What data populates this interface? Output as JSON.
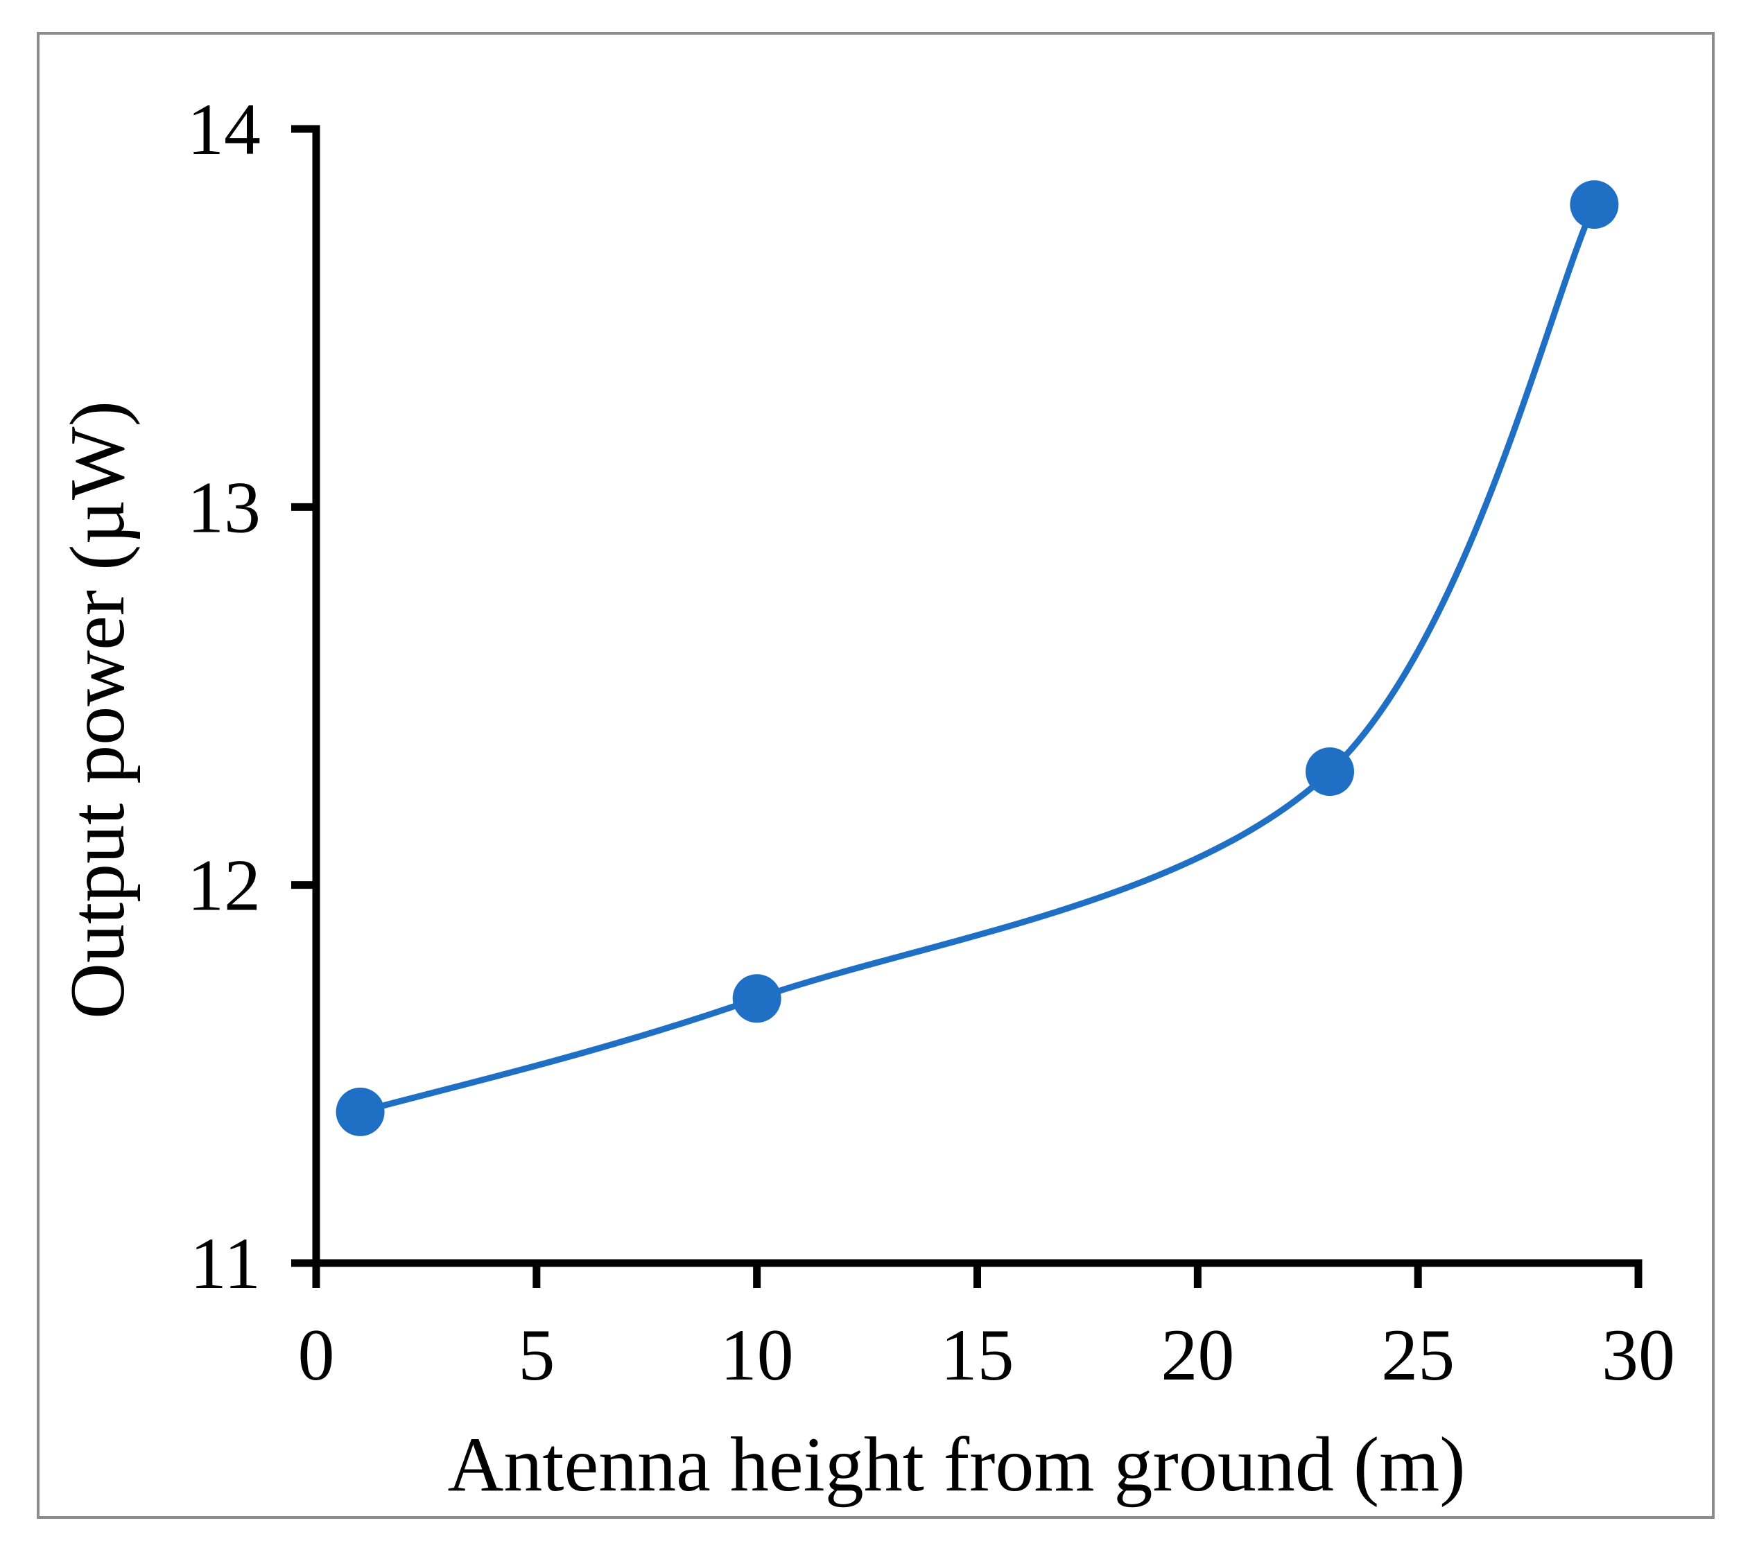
{
  "chart_data": {
    "type": "line",
    "title": "",
    "xlabel": "Antenna height from ground (m)",
    "ylabel": "Output power (µW)",
    "xlim": [
      0,
      30
    ],
    "ylim": [
      11,
      14
    ],
    "xticks": [
      0,
      5,
      10,
      15,
      20,
      25,
      30
    ],
    "yticks": [
      11,
      12,
      13,
      14
    ],
    "grid": false,
    "legend": "none",
    "smooth": true,
    "series": [
      {
        "name": "Output power",
        "color": "#1F6FC5",
        "x": [
          1,
          10,
          23,
          29
        ],
        "y": [
          11.4,
          11.7,
          12.3,
          13.8
        ]
      }
    ]
  }
}
